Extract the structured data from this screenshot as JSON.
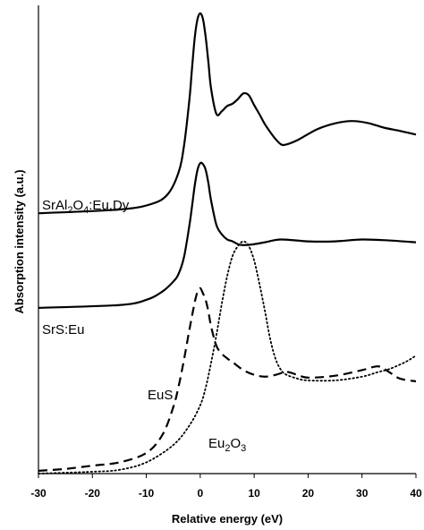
{
  "chart_data": {
    "type": "line",
    "xlabel": "Relative energy (eV)",
    "ylabel": "Absorption intensity (a.u.)",
    "xlim": [
      -30,
      40
    ],
    "ylim": [
      0,
      100
    ],
    "x_ticks": [
      "-30",
      "-20",
      "-10",
      "0",
      "10",
      "20",
      "30",
      "40"
    ],
    "x_tick_values": [
      -30,
      -20,
      -10,
      0,
      10,
      20,
      30,
      40
    ],
    "grid": false,
    "series": [
      {
        "name": "SrAl2O4:Eu,Dy",
        "label_parts": {
          "p1": "SrAl",
          "s1": "2",
          "p2": "O",
          "s2": "4",
          "p3": ":Eu,Dy"
        },
        "style": "solid",
        "x": [
          -30,
          -15,
          -9,
          -6,
          -4,
          -3,
          -2,
          -1.5,
          -1,
          -0.5,
          0,
          0.5,
          1,
          1.5,
          2,
          3,
          4,
          5,
          6,
          7,
          8,
          9,
          10,
          11,
          12,
          13,
          14,
          15,
          16,
          18,
          20,
          22,
          25,
          28,
          31,
          34,
          37,
          40
        ],
        "y": [
          55.6,
          56.4,
          57.6,
          59.7,
          64.4,
          70.1,
          80.0,
          86.9,
          93.3,
          97.1,
          98.3,
          97.1,
          93.3,
          88.0,
          82.3,
          76.8,
          77.4,
          78.5,
          79.0,
          80.0,
          81.2,
          80.8,
          78.7,
          76.7,
          74.6,
          72.9,
          71.4,
          70.3,
          70.3,
          71.2,
          72.5,
          73.7,
          74.8,
          75.3,
          74.9,
          73.9,
          73.2,
          72.4
        ]
      },
      {
        "name": "SrS:Eu",
        "style": "solid",
        "x": [
          -30,
          -15,
          -10,
          -7,
          -5,
          -4,
          -3,
          -2,
          -1.5,
          -1,
          -0.5,
          0,
          0.5,
          1,
          1.5,
          2,
          3,
          4,
          5,
          6,
          7,
          8,
          10,
          12,
          15,
          20,
          25,
          30,
          35,
          40
        ],
        "y": [
          35.4,
          36.0,
          37.1,
          38.9,
          41.0,
          42.7,
          46.3,
          53.1,
          57.3,
          61.7,
          64.9,
          66.3,
          66.1,
          64.9,
          62.1,
          58.4,
          53.1,
          51.1,
          50.0,
          49.6,
          49.0,
          48.8,
          49.0,
          49.4,
          50.0,
          49.6,
          49.6,
          50.0,
          49.8,
          49.4
        ]
      },
      {
        "name": "EuS",
        "style": "dashed",
        "x": [
          -30,
          -25,
          -20,
          -15,
          -10,
          -7,
          -5,
          -4,
          -3,
          -2,
          -1,
          -0.5,
          0,
          0.5,
          1,
          1.5,
          2,
          3,
          4,
          5,
          6,
          8,
          10,
          12,
          14,
          16,
          18,
          20,
          25,
          30,
          33,
          35,
          37,
          40
        ],
        "y": [
          0.6,
          1.0,
          1.7,
          2.4,
          4.4,
          8.3,
          14.2,
          18.7,
          24.4,
          30.8,
          36.7,
          38.8,
          39.6,
          38.5,
          37.1,
          34.7,
          31.5,
          27.3,
          25.6,
          24.6,
          23.8,
          22.1,
          21.1,
          20.7,
          21.1,
          21.7,
          21.1,
          20.5,
          20.9,
          22.1,
          22.9,
          21.7,
          20.3,
          19.7
        ]
      },
      {
        "name": "Eu2O3",
        "label_parts": {
          "p1": "Eu",
          "s1": "2",
          "p2": "O",
          "s2": "3",
          "p3": ""
        },
        "style": "dotted",
        "x": [
          -30,
          -20,
          -15,
          -10,
          -5,
          -2,
          0,
          1,
          2,
          3,
          4,
          5,
          6,
          7,
          8,
          9,
          10,
          11,
          12,
          13,
          14,
          15,
          16,
          18,
          20,
          25,
          30,
          33,
          35,
          38,
          40
        ],
        "y": [
          0.0,
          0.4,
          0.8,
          2.4,
          6.1,
          10.3,
          14.6,
          18.3,
          23.6,
          29.6,
          36.3,
          42.2,
          46.5,
          48.6,
          49.6,
          48.6,
          45.5,
          40.4,
          34.7,
          28.6,
          24.4,
          22.1,
          21.1,
          20.3,
          19.9,
          19.9,
          20.7,
          21.7,
          22.3,
          23.8,
          25.2
        ]
      }
    ]
  }
}
